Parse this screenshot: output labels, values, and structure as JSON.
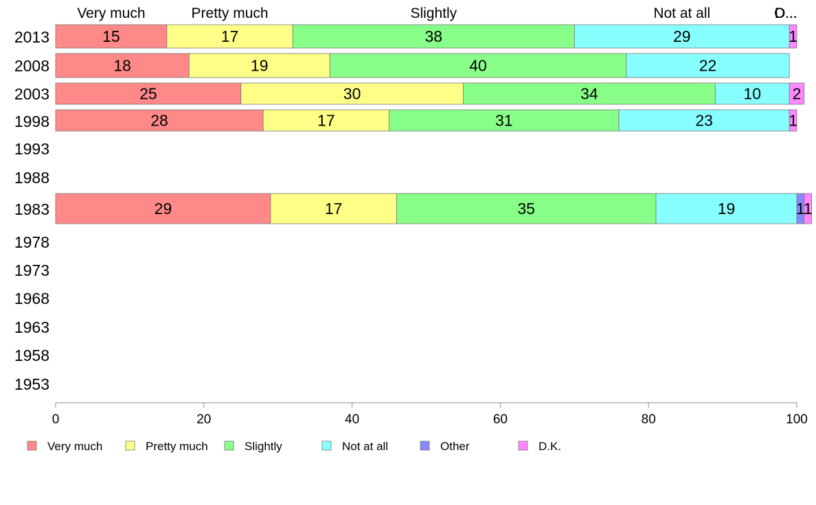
{
  "chart_data": {
    "type": "bar",
    "orientation": "horizontal",
    "stacked": true,
    "categories": [
      "2013",
      "2008",
      "2003",
      "1998",
      "1993",
      "1988",
      "1983",
      "1978",
      "1973",
      "1968",
      "1963",
      "1958",
      "1953"
    ],
    "series": [
      {
        "name": "Very much",
        "color": "#ff8888",
        "values": [
          15,
          18,
          25,
          28,
          null,
          null,
          29,
          null,
          null,
          null,
          null,
          null,
          null
        ]
      },
      {
        "name": "Pretty much",
        "color": "#ffff88",
        "values": [
          17,
          19,
          30,
          17,
          null,
          null,
          17,
          null,
          null,
          null,
          null,
          null,
          null
        ]
      },
      {
        "name": "Slightly",
        "color": "#88ff88",
        "values": [
          38,
          40,
          34,
          31,
          null,
          null,
          35,
          null,
          null,
          null,
          null,
          null,
          null
        ]
      },
      {
        "name": "Not at all",
        "color": "#88ffff",
        "values": [
          29,
          22,
          10,
          23,
          null,
          null,
          19,
          null,
          null,
          null,
          null,
          null,
          null
        ]
      },
      {
        "name": "Other",
        "color": "#8888ff",
        "values": [
          0,
          0,
          0,
          0,
          null,
          null,
          1,
          null,
          null,
          null,
          null,
          null,
          null
        ]
      },
      {
        "name": "D.K.",
        "color": "#ff88ff",
        "values": [
          1,
          0,
          2,
          1,
          null,
          null,
          1,
          null,
          null,
          null,
          null,
          null,
          null
        ]
      }
    ],
    "top_labels": [
      "Very much",
      "Pretty much",
      "Slightly",
      "Not at all",
      "O...",
      "D..."
    ],
    "xlim": [
      0,
      100
    ],
    "xticks": [
      0,
      20,
      40,
      60,
      80,
      100
    ],
    "legend_position": "bottom",
    "grid": false
  }
}
